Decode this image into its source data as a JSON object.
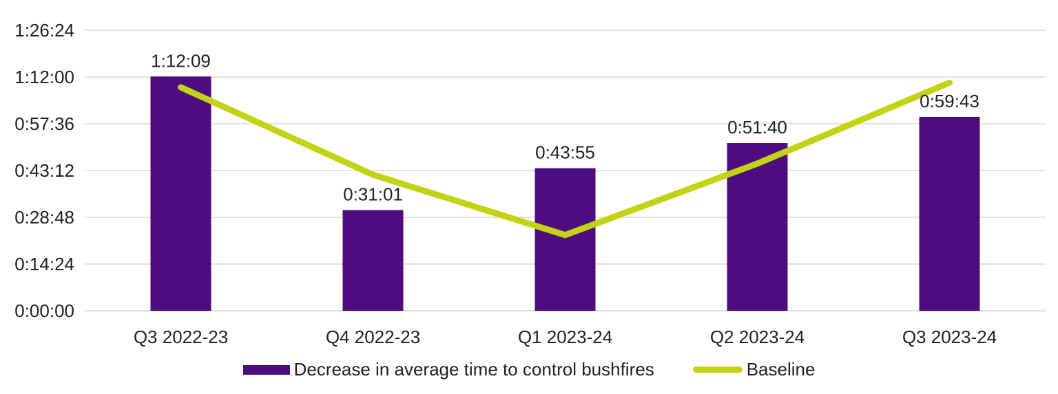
{
  "chart_data": {
    "type": "bar",
    "subtype": "bar-with-line-overlay",
    "categories": [
      "Q3 2022-23",
      "Q4 2022-23",
      "Q1 2023-24",
      "Q2 2023-24",
      "Q3 2023-24"
    ],
    "y_ticks": [
      "0:00:00",
      "0:14:24",
      "0:28:48",
      "0:43:12",
      "0:57:36",
      "1:12:00",
      "1:26:24"
    ],
    "y_max": "1:26:24",
    "grid": "horizontal",
    "legend_position": "bottom",
    "title": "",
    "xlabel": "",
    "ylabel": "",
    "series": [
      {
        "name": "Decrease in average time to control bushfires",
        "type": "bar",
        "color": "#4E0D7E",
        "values": [
          "1:12:09",
          "0:31:01",
          "0:43:55",
          "0:51:40",
          "0:59:43"
        ],
        "data_labels_shown": true
      },
      {
        "name": "Baseline",
        "type": "line",
        "color": "#C3D212",
        "values": [
          "1:08:50",
          "0:41:55",
          "0:23:20",
          "0:45:20",
          "1:10:15"
        ],
        "values_note": "estimated from line position; no data labels shown",
        "data_labels_shown": false
      }
    ],
    "colors": {
      "gridline": "#D9D9D9",
      "axis_text": "#212121",
      "background": "#FFFFFF"
    }
  },
  "legend": {
    "items": [
      {
        "label": "Decrease in average time to control bushfires",
        "marker": "bar-swatch",
        "color": "#4E0D7E"
      },
      {
        "label": "Baseline",
        "marker": "line-swatch",
        "color": "#C3D212"
      }
    ]
  }
}
